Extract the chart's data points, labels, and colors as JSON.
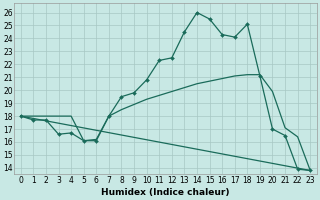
{
  "xlabel": "Humidex (Indice chaleur)",
  "background_color": "#c8e8e4",
  "line_color": "#1a6b5a",
  "xlim": [
    -0.5,
    23.5
  ],
  "ylim": [
    13.5,
    26.7
  ],
  "xticks": [
    0,
    1,
    2,
    3,
    4,
    5,
    6,
    7,
    8,
    9,
    10,
    11,
    12,
    13,
    14,
    15,
    16,
    17,
    18,
    19,
    20,
    21,
    22,
    23
  ],
  "yticks": [
    14,
    15,
    16,
    17,
    18,
    19,
    20,
    21,
    22,
    23,
    24,
    25,
    26
  ],
  "line1_x": [
    0,
    1,
    2,
    3,
    4,
    5,
    6,
    7,
    8,
    9,
    10,
    11,
    12,
    13,
    14,
    15,
    16,
    17,
    18,
    19,
    20,
    21,
    22,
    23
  ],
  "line1_y": [
    18.0,
    17.7,
    17.7,
    16.6,
    16.7,
    16.1,
    16.1,
    18.0,
    19.5,
    19.8,
    20.8,
    22.3,
    22.5,
    24.5,
    26.0,
    25.5,
    24.3,
    24.1,
    25.1,
    21.1,
    17.0,
    16.5,
    13.9,
    13.8
  ],
  "line2_x": [
    0,
    1,
    2,
    3,
    4,
    5,
    6,
    7,
    8,
    9,
    10,
    11,
    12,
    13,
    14,
    15,
    16,
    17,
    18,
    19,
    20,
    21,
    22,
    23
  ],
  "line2_y": [
    18.0,
    18.0,
    18.0,
    18.0,
    18.0,
    16.1,
    16.2,
    18.0,
    18.5,
    18.9,
    19.3,
    19.6,
    19.9,
    20.2,
    20.5,
    20.7,
    20.9,
    21.1,
    21.2,
    21.2,
    19.9,
    17.1,
    16.4,
    13.8
  ],
  "line3_x": [
    0,
    23
  ],
  "line3_y": [
    18.0,
    13.8
  ]
}
